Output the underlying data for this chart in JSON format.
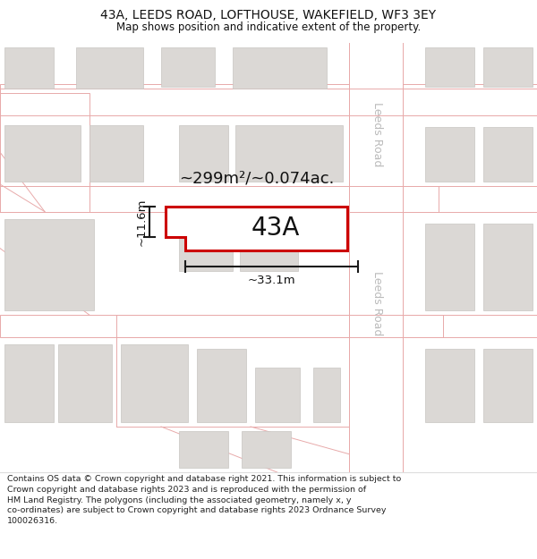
{
  "title": "43A, LEEDS ROAD, LOFTHOUSE, WAKEFIELD, WF3 3EY",
  "subtitle": "Map shows position and indicative extent of the property.",
  "footer_lines": [
    "Contains OS data © Crown copyright and database right 2021. This information is subject to Crown copyright and database rights 2023 and is reproduced with the permission of",
    "HM Land Registry. The polygons (including the associated geometry, namely x, y co-ordinates) are subject to Crown copyright and database rights 2023 Ordnance Survey",
    "100026316."
  ],
  "map_bg": "#f5f2ef",
  "road_fill": "#ffffff",
  "road_line": "#e8aaaa",
  "building_fill": "#dbd8d5",
  "building_edge": "#c8c5c2",
  "highlight_color": "#cc0000",
  "highlight_fill": "#ffffff",
  "dim_color": "#1a1a1a",
  "road_label_color": "#bbbbbb",
  "area_text": "~299m²/~0.074ac.",
  "plot_label": "43A",
  "width_label": "~33.1m",
  "height_label": "~11.6m",
  "leeds_road_label": "Leeds Road",
  "title_fontsize": 10,
  "subtitle_fontsize": 8.5,
  "footer_fontsize": 6.8,
  "area_fontsize": 13,
  "plot_fontsize": 20,
  "dim_fontsize": 9.5,
  "road_label_fontsize": 9
}
